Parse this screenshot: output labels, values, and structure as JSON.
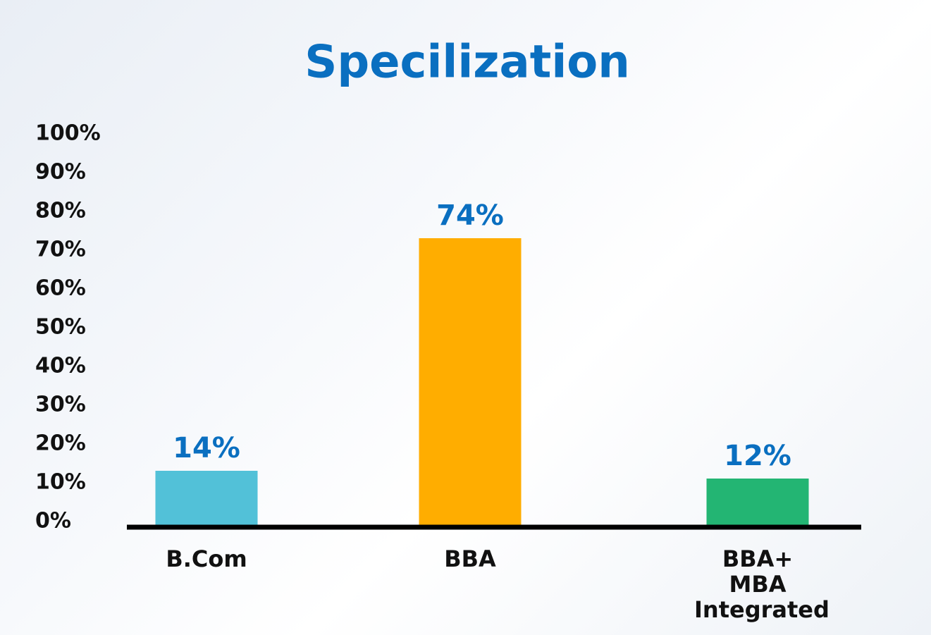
{
  "chart_data": {
    "type": "bar",
    "title": "Specilization",
    "categories": [
      "B.Com",
      "BBA",
      "BBA+ MBA Integrated"
    ],
    "values": [
      14,
      74,
      12
    ],
    "value_labels": [
      "14%",
      "74%",
      "12%"
    ],
    "colors": [
      "#52c1d8",
      "#ffad00",
      "#23b573"
    ],
    "ylim": [
      0,
      100
    ],
    "yticks": [
      {
        "value": 0,
        "label": "0%"
      },
      {
        "value": 10,
        "label": "10%"
      },
      {
        "value": 20,
        "label": "20%"
      },
      {
        "value": 30,
        "label": "30%"
      },
      {
        "value": 40,
        "label": "40%"
      },
      {
        "value": 50,
        "label": "50%"
      },
      {
        "value": 60,
        "label": "60%"
      },
      {
        "value": 70,
        "label": "70%"
      },
      {
        "value": 80,
        "label": "80%"
      },
      {
        "value": 90,
        "label": "90%"
      },
      {
        "value": 100,
        "label": "100%"
      }
    ],
    "grid": false
  }
}
